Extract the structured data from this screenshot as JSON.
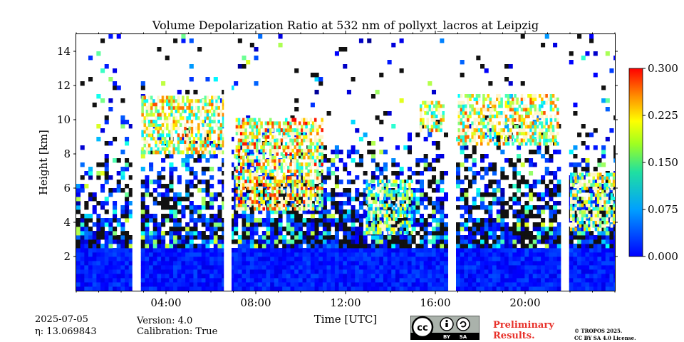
{
  "chart_data": {
    "type": "heatmap",
    "title": "Volume Depolarization Ratio at 532 nm of pollyxt_lacros at Leipzig",
    "xlabel": "Time [UTC]",
    "ylabel": "Height [km]",
    "x_range_hours": [
      0,
      24
    ],
    "ylim": [
      0,
      15
    ],
    "x_ticks": [
      4,
      8,
      12,
      16,
      20
    ],
    "x_tick_labels": [
      "04:00",
      "08:00",
      "12:00",
      "16:00",
      "20:00"
    ],
    "y_ticks": [
      2,
      4,
      6,
      8,
      10,
      12,
      14
    ],
    "y_tick_labels": [
      "2",
      "4",
      "6",
      "8",
      "10",
      "12",
      "14"
    ],
    "colorbar": {
      "min": 0.0,
      "max": 0.3,
      "ticks": [
        0.0,
        0.075,
        0.15,
        0.225,
        0.3
      ],
      "tick_labels": [
        "0.000",
        "0.075",
        "0.150",
        "0.225",
        "0.300"
      ],
      "colormap": "jet"
    },
    "data_gaps_hours": [
      [
        2.5,
        2.83
      ],
      [
        6.58,
        6.92
      ],
      [
        16.58,
        16.92
      ],
      [
        21.6,
        21.95
      ]
    ],
    "features": [
      {
        "name": "boundary layer",
        "t_start": 0,
        "t_end": 24,
        "top_km": 2.4,
        "value": 0.03
      },
      {
        "name": "cirrus",
        "t_start": 2.9,
        "t_end": 6.5,
        "base_km": 8.0,
        "top_km": 11.3,
        "value": 0.2
      },
      {
        "name": "cirrus",
        "t_start": 7.1,
        "t_end": 10.9,
        "base_km": 4.7,
        "top_km": 10.0,
        "value": 0.22
      },
      {
        "name": "cirrus",
        "t_start": 12.9,
        "t_end": 14.9,
        "base_km": 3.3,
        "top_km": 6.5,
        "value": 0.16
      },
      {
        "name": "cirrus",
        "t_start": 15.3,
        "t_end": 16.4,
        "base_km": 9.3,
        "top_km": 11.0,
        "value": 0.2
      },
      {
        "name": "cirrus",
        "t_start": 16.9,
        "t_end": 21.5,
        "base_km": 8.5,
        "top_km": 11.3,
        "value": 0.2
      },
      {
        "name": "cloud layer",
        "t_start": 22.0,
        "t_end": 24.0,
        "base_km": 3.5,
        "top_km": 6.8,
        "value": 0.18
      }
    ]
  },
  "footer": {
    "date": "2025-07-05",
    "eta": "η: 13.069843",
    "version": "Version: 4.0",
    "calibration": "Calibration: True",
    "preliminary_line1": "Preliminary",
    "preliminary_line2": "Results.",
    "copyright": "© TROPOS 2025.",
    "license": "CC BY SA 4.0 License.",
    "badge_left": "BY",
    "badge_right": "SA"
  }
}
